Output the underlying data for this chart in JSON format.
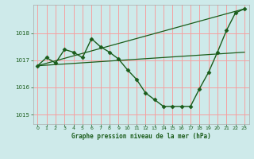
{
  "title": "Graphe pression niveau de la mer (hPa)",
  "background_color": "#ceeaea",
  "grid_color": "#f5a0a0",
  "line_color": "#1a5c1a",
  "xlim": [
    -0.5,
    23.5
  ],
  "ylim": [
    1014.65,
    1019.05
  ],
  "yticks": [
    1015,
    1016,
    1017,
    1018
  ],
  "xticks": [
    0,
    1,
    2,
    3,
    4,
    5,
    6,
    7,
    8,
    9,
    10,
    11,
    12,
    13,
    14,
    15,
    16,
    17,
    18,
    19,
    20,
    21,
    22,
    23
  ],
  "series": [
    {
      "x": [
        0,
        1,
        2,
        3,
        4,
        5,
        6,
        7,
        8,
        9,
        10,
        11,
        12,
        13,
        14,
        15,
        16,
        17,
        18,
        19,
        20,
        21,
        22,
        23
      ],
      "y": [
        1016.8,
        1017.1,
        1016.9,
        1017.4,
        1017.3,
        1017.1,
        1017.8,
        1017.5,
        1017.3,
        1017.05,
        1016.65,
        1016.3,
        1015.8,
        1015.55,
        1015.3,
        1015.3,
        1015.3,
        1015.3,
        1015.95,
        1016.55,
        1017.3,
        1018.1,
        1018.75,
        1018.9
      ],
      "marker": "D",
      "markersize": 2.5,
      "linewidth": 1.0
    },
    {
      "x": [
        0,
        23
      ],
      "y": [
        1016.8,
        1018.9
      ],
      "marker": null,
      "linewidth": 0.9
    },
    {
      "x": [
        0,
        23
      ],
      "y": [
        1016.8,
        1017.3
      ],
      "marker": null,
      "linewidth": 0.9
    }
  ]
}
